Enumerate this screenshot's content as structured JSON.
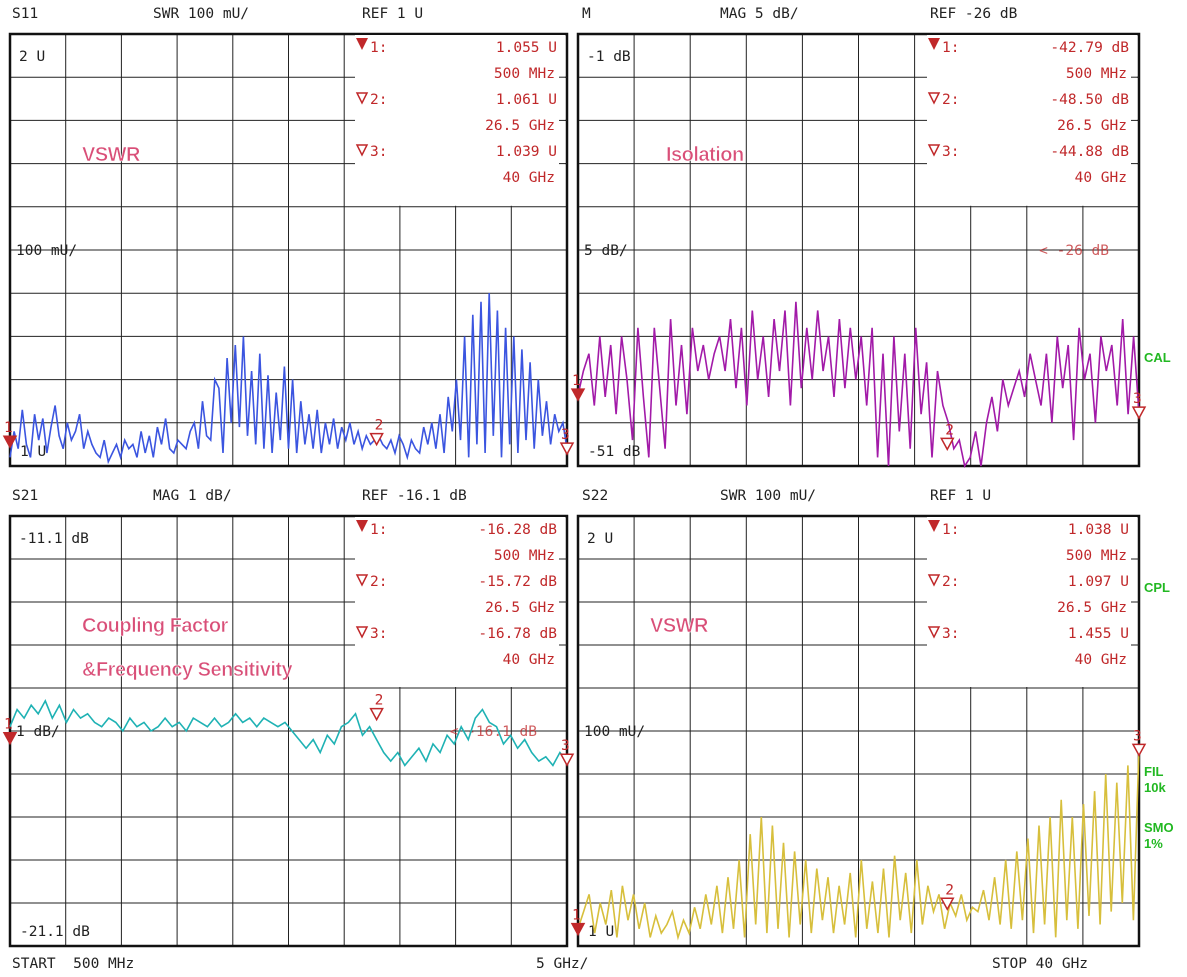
{
  "colors": {
    "marker": "#c0282a",
    "annotation": "#d94f78",
    "side": "#22b822",
    "grid": "#222222"
  },
  "side_labels": [
    "CAL",
    "CPL",
    "FIL\n10k",
    "SMO\n1%"
  ],
  "footer": {
    "start": "START  500 MHz",
    "span": "5 GHz/",
    "stop": "STOP 40 GHz"
  },
  "chart_data": [
    {
      "type": "line",
      "title": "S11",
      "header": {
        "trace": "S11",
        "scale": "SWR 100 mU/",
        "ref": "REF 1 U"
      },
      "top_label": "2 U",
      "mid_label": "100 mU/",
      "bottom_label": "1 U",
      "annotation": "VSWR",
      "ylim": [
        1,
        2
      ],
      "xlim": [
        0.5,
        40
      ],
      "color": "#3b55e0",
      "markers": [
        {
          "index": "1:",
          "value": "1.055  U",
          "freq": "500 MHz",
          "x": 0.5,
          "y": 1.055,
          "filled": true
        },
        {
          "index": "2:",
          "value": "1.061  U",
          "freq": "26.5 GHz",
          "x": 26.5,
          "y": 1.061,
          "filled": false
        },
        {
          "index": "3:",
          "value": "1.039  U",
          "freq": "40 GHz",
          "x": 40,
          "y": 1.039,
          "filled": false
        }
      ],
      "y": [
        1.02,
        1.08,
        1.04,
        1.13,
        1.05,
        1.02,
        1.12,
        1.06,
        1.11,
        1.03,
        1.09,
        1.14,
        1.07,
        1.04,
        1.1,
        1.06,
        1.08,
        1.12,
        1.04,
        1.08,
        1.05,
        1.03,
        1.02,
        1.06,
        1.01,
        1.03,
        1.05,
        1.02,
        1.06,
        1.04,
        1.05,
        1.02,
        1.08,
        1.03,
        1.07,
        1.02,
        1.09,
        1.05,
        1.11,
        1.04,
        1.03,
        1.06,
        1.05,
        1.04,
        1.08,
        1.1,
        1.04,
        1.15,
        1.07,
        1.06,
        1.2,
        1.18,
        1.03,
        1.25,
        1.1,
        1.28,
        1.09,
        1.3,
        1.07,
        1.22,
        1.05,
        1.26,
        1.04,
        1.21,
        1.03,
        1.17,
        1.06,
        1.23,
        1.04,
        1.2,
        1.03,
        1.15,
        1.05,
        1.12,
        1.04,
        1.13,
        1.03,
        1.1,
        1.05,
        1.11,
        1.04,
        1.09,
        1.06,
        1.1,
        1.05,
        1.08,
        1.04,
        1.07,
        1.05,
        1.06,
        1.07,
        1.05,
        1.04,
        1.06,
        1.03,
        1.07,
        1.05,
        1.02,
        1.06,
        1.04,
        1.03,
        1.09,
        1.05,
        1.1,
        1.04,
        1.12,
        1.03,
        1.16,
        1.08,
        1.2,
        1.06,
        1.3,
        1.02,
        1.35,
        1.05,
        1.38,
        1.03,
        1.4,
        1.07,
        1.36,
        1.02,
        1.32,
        1.05,
        1.3,
        1.03,
        1.27,
        1.06,
        1.24,
        1.04,
        1.2,
        1.07,
        1.15,
        1.05,
        1.12,
        1.08,
        1.1,
        1.04
      ]
    },
    {
      "type": "line",
      "title": "M",
      "header": {
        "trace": "M",
        "scale": "MAG 5 dB/",
        "ref": "REF -26 dB"
      },
      "top_label": "-1 dB",
      "mid_label": "5 dB/",
      "bottom_label": "-51 dB",
      "ref_label": "<  -26 dB",
      "annotation": "Isolation",
      "ylim": [
        -51,
        -1
      ],
      "xlim": [
        0.5,
        40
      ],
      "color": "#a21aa8",
      "markers": [
        {
          "index": "1:",
          "value": "-42.79 dB",
          "freq": "500 MHz",
          "x": 0.5,
          "y": -42.79,
          "filled": true
        },
        {
          "index": "2:",
          "value": "-48.50 dB",
          "freq": "26.5 GHz",
          "x": 26.5,
          "y": -48.5,
          "filled": false
        },
        {
          "index": "3:",
          "value": "-44.88 dB",
          "freq": "40 GHz",
          "x": 40,
          "y": -44.88,
          "filled": false
        }
      ],
      "y": [
        -42.8,
        -40,
        -38,
        -44,
        -36,
        -43,
        -37,
        -45,
        -36,
        -41,
        -48,
        -35,
        -43,
        -50,
        -35,
        -42,
        -49,
        -34,
        -44,
        -37,
        -45,
        -35,
        -40,
        -37,
        -41,
        -38,
        -36,
        -40,
        -34,
        -42,
        -35,
        -44,
        -33,
        -41,
        -36,
        -43,
        -34,
        -40,
        -33,
        -44,
        -32,
        -42,
        -35,
        -41,
        -33,
        -40,
        -36,
        -43,
        -34,
        -42,
        -35,
        -41,
        -36,
        -44,
        -35,
        -50,
        -38,
        -51,
        -36,
        -47,
        -38,
        -49,
        -35,
        -45,
        -39,
        -50,
        -40,
        -44,
        -46,
        -49,
        -48,
        -51,
        -50,
        -47,
        -51,
        -46,
        -43,
        -47,
        -41,
        -44,
        -42,
        -40,
        -43,
        -38,
        -41,
        -44,
        -38,
        -46,
        -36,
        -42,
        -37,
        -48,
        -35,
        -41,
        -38,
        -46,
        -36,
        -40,
        -37,
        -44,
        -34,
        -45,
        -36,
        -44.9
      ]
    },
    {
      "type": "line",
      "title": "S21",
      "header": {
        "trace": "S21",
        "scale": "MAG 1 dB/",
        "ref": "REF -16.1 dB"
      },
      "top_label": "-11.1 dB",
      "mid_label": "1 dB/",
      "bottom_label": "-21.1 dB",
      "ref_label": "<  -16.1 dB",
      "annotation": "Coupling Factor",
      "annotation2": "&Frequency Sensitivity",
      "ylim": [
        -21.1,
        -11.1
      ],
      "xlim": [
        0.5,
        40
      ],
      "color": "#1fb2b4",
      "markers": [
        {
          "index": "1:",
          "value": "-16.28 dB",
          "freq": "500 MHz",
          "x": 0.5,
          "y": -16.28,
          "filled": true
        },
        {
          "index": "2:",
          "value": "-15.72 dB",
          "freq": "26.5 GHz",
          "x": 26.5,
          "y": -15.72,
          "filled": false
        },
        {
          "index": "3:",
          "value": "-16.78 dB",
          "freq": "40 GHz",
          "x": 40,
          "y": -16.78,
          "filled": false
        }
      ],
      "y": [
        -16.0,
        -15.6,
        -15.8,
        -15.5,
        -15.7,
        -15.4,
        -15.8,
        -15.5,
        -15.9,
        -15.6,
        -15.8,
        -15.7,
        -15.9,
        -16.0,
        -15.8,
        -15.9,
        -16.1,
        -15.8,
        -16.0,
        -15.9,
        -16.1,
        -16.0,
        -15.8,
        -16.0,
        -15.9,
        -16.1,
        -15.8,
        -15.9,
        -16.0,
        -15.8,
        -16.0,
        -15.9,
        -15.7,
        -15.9,
        -15.8,
        -16.0,
        -15.8,
        -15.9,
        -16.0,
        -15.9,
        -16.1,
        -16.3,
        -16.5,
        -16.3,
        -16.6,
        -16.2,
        -16.4,
        -16.0,
        -15.9,
        -15.7,
        -16.2,
        -16.0,
        -16.3,
        -16.6,
        -16.8,
        -16.6,
        -16.9,
        -16.7,
        -16.5,
        -16.8,
        -16.4,
        -16.6,
        -16.2,
        -16.4,
        -16.0,
        -16.3,
        -15.8,
        -15.6,
        -15.9,
        -16.0,
        -16.4,
        -16.2,
        -16.5,
        -16.3,
        -16.6,
        -16.8,
        -16.7,
        -16.9,
        -16.6,
        -16.8
      ]
    },
    {
      "type": "line",
      "title": "S22",
      "header": {
        "trace": "S22",
        "scale": "SWR 100 mU/",
        "ref": "REF 1 U"
      },
      "top_label": "2 U",
      "mid_label": "100 mU/",
      "bottom_label": "1 U",
      "annotation": "VSWR",
      "ylim": [
        1,
        2
      ],
      "xlim": [
        0.5,
        40
      ],
      "color": "#d7bf3c",
      "markers": [
        {
          "index": "1:",
          "value": "1.038  U",
          "freq": "500 MHz",
          "x": 0.5,
          "y": 1.038,
          "filled": true
        },
        {
          "index": "2:",
          "value": "1.097  U",
          "freq": "26.5 GHz",
          "x": 26.5,
          "y": 1.097,
          "filled": false
        },
        {
          "index": "3:",
          "value": "1.455  U",
          "freq": "40 GHz",
          "x": 40,
          "y": 1.455,
          "filled": false
        }
      ],
      "y": [
        1.04,
        1.08,
        1.12,
        1.03,
        1.1,
        1.05,
        1.13,
        1.02,
        1.14,
        1.06,
        1.12,
        1.04,
        1.1,
        1.02,
        1.07,
        1.03,
        1.05,
        1.08,
        1.02,
        1.06,
        1.03,
        1.09,
        1.04,
        1.12,
        1.05,
        1.14,
        1.03,
        1.16,
        1.04,
        1.2,
        1.02,
        1.26,
        1.05,
        1.3,
        1.03,
        1.28,
        1.04,
        1.24,
        1.02,
        1.22,
        1.05,
        1.2,
        1.03,
        1.18,
        1.06,
        1.16,
        1.03,
        1.14,
        1.05,
        1.17,
        1.02,
        1.2,
        1.04,
        1.15,
        1.03,
        1.18,
        1.02,
        1.21,
        1.06,
        1.17,
        1.03,
        1.2,
        1.05,
        1.14,
        1.08,
        1.12,
        1.04,
        1.1,
        1.07,
        1.12,
        1.06,
        1.09,
        1.08,
        1.13,
        1.06,
        1.16,
        1.05,
        1.2,
        1.04,
        1.22,
        1.06,
        1.25,
        1.03,
        1.28,
        1.05,
        1.3,
        1.02,
        1.34,
        1.06,
        1.3,
        1.04,
        1.33,
        1.07,
        1.36,
        1.05,
        1.4,
        1.08,
        1.38,
        1.1,
        1.42,
        1.06,
        1.46
      ]
    }
  ]
}
